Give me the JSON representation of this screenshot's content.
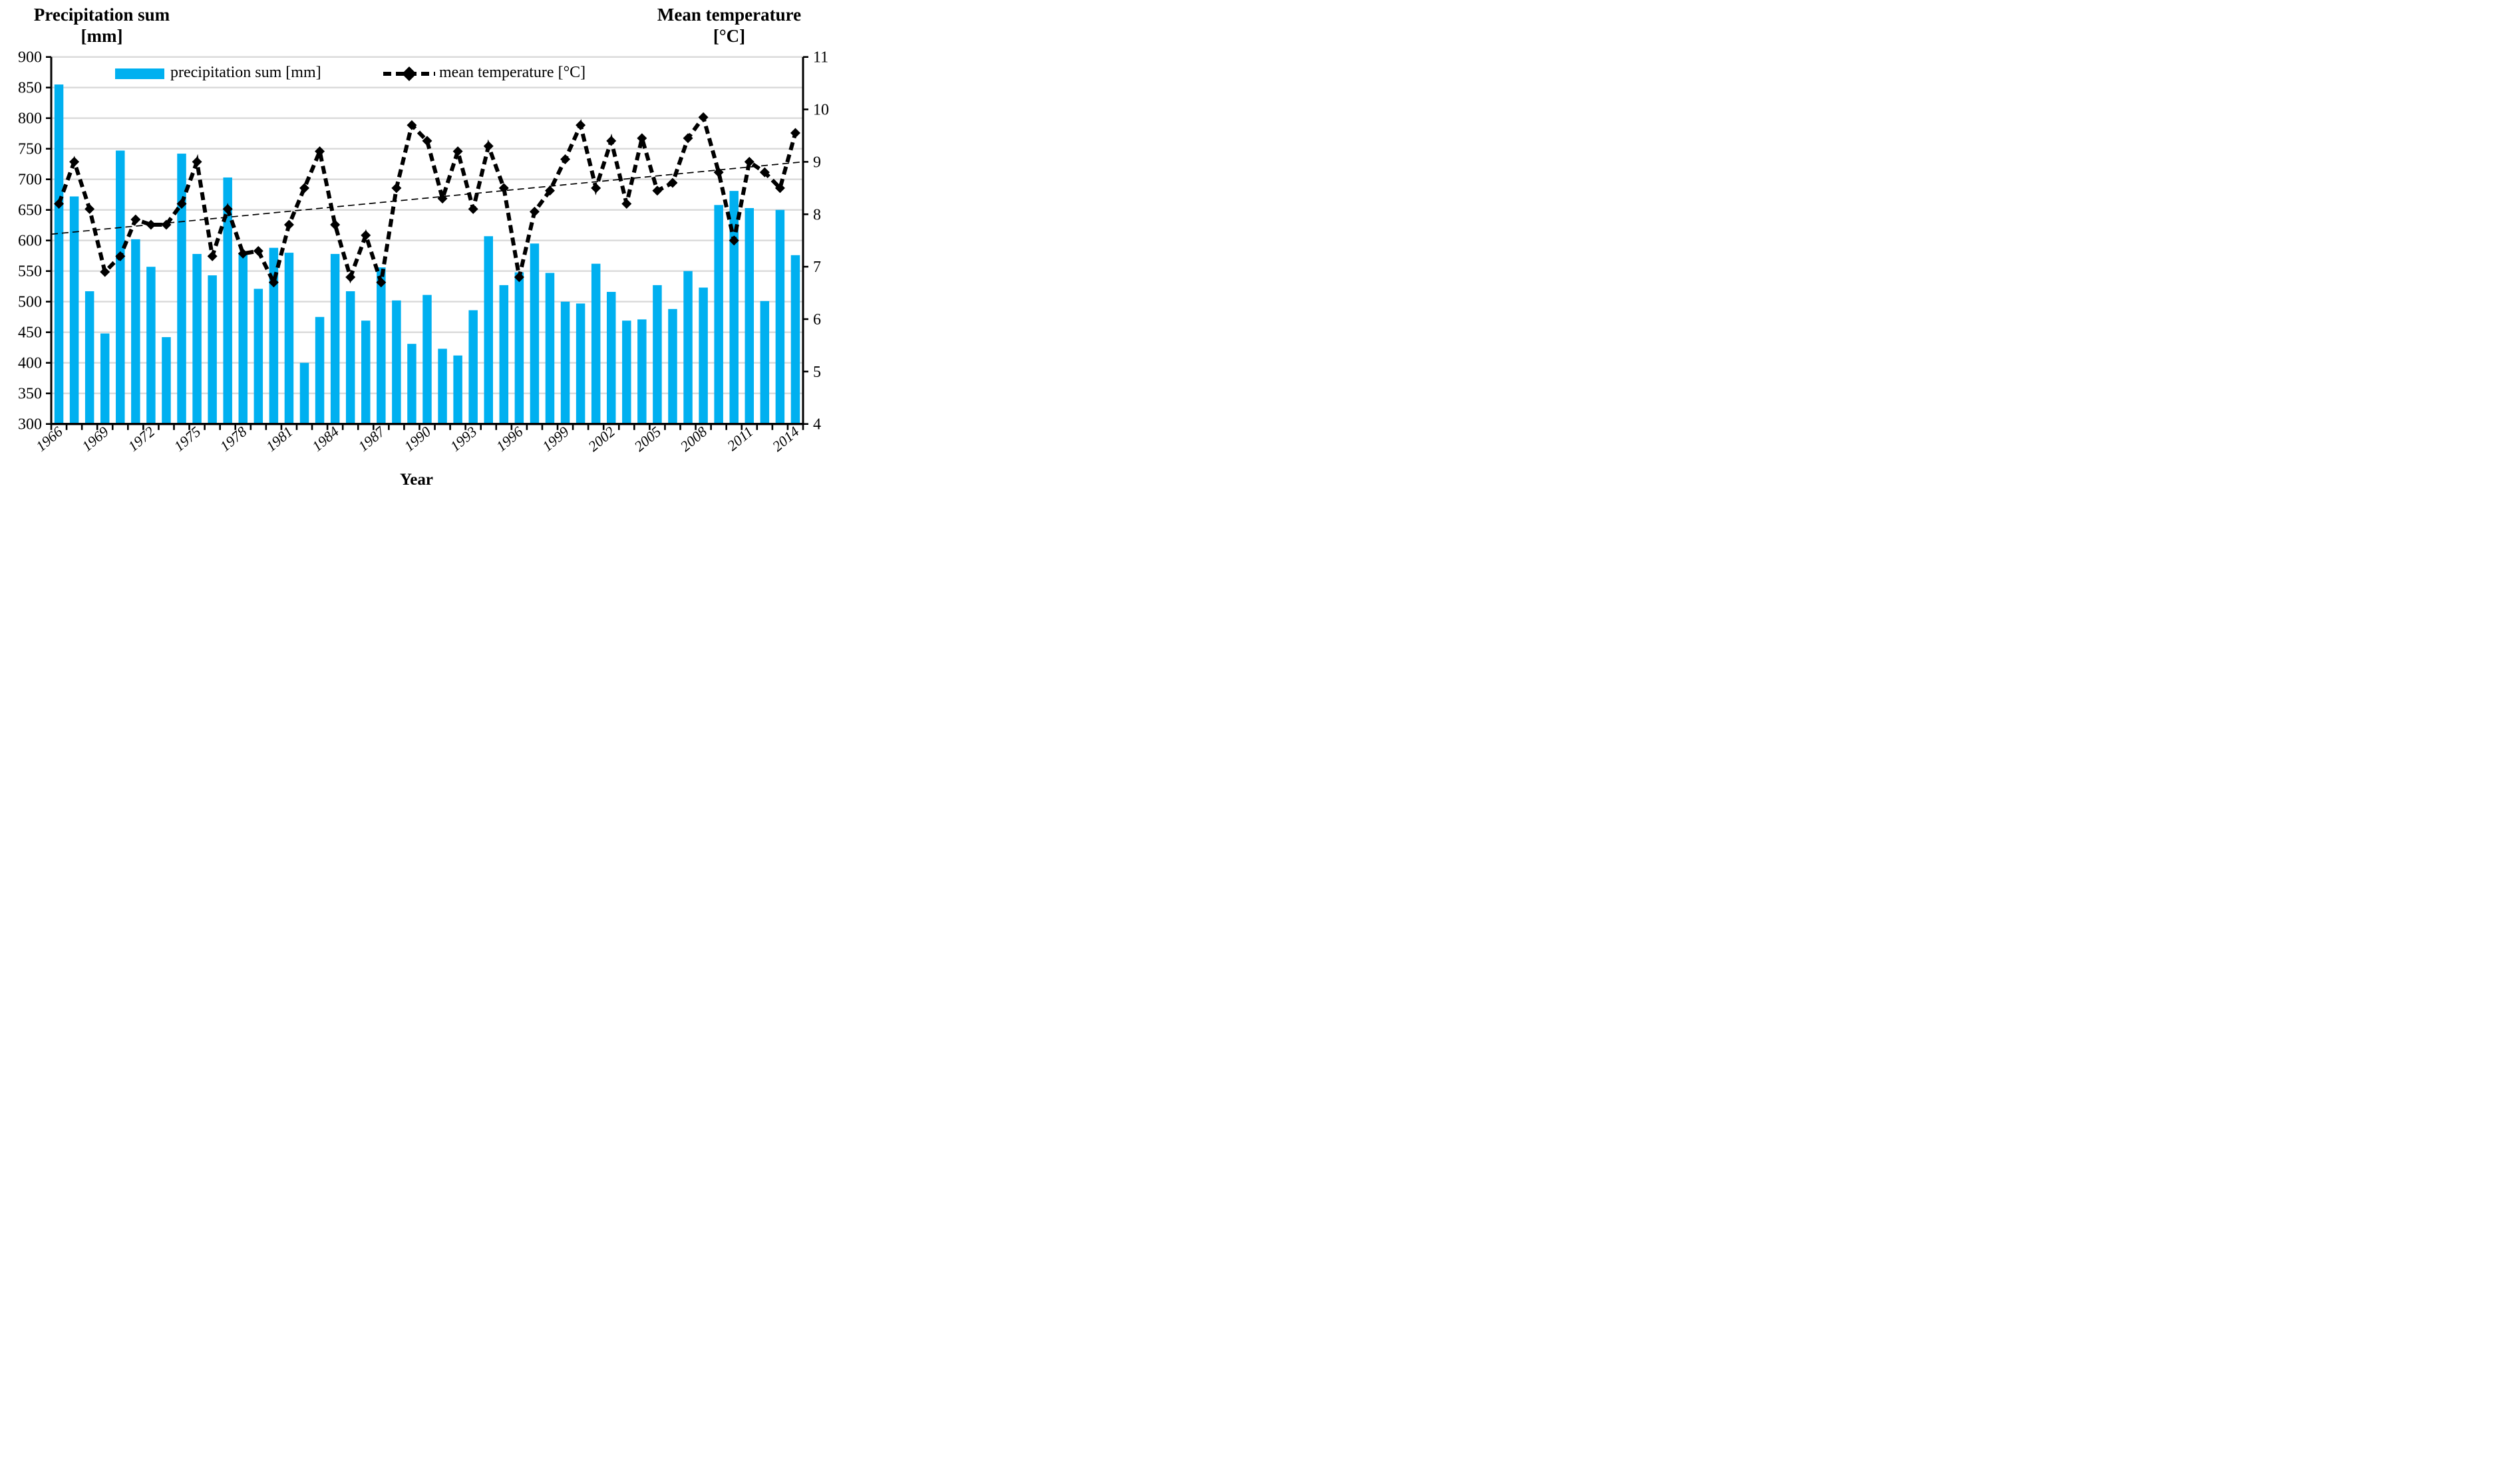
{
  "chart_data": {
    "type": "bar",
    "combo": "bar + dashed line with diamond markers + thin linear trendline, dual y-axes",
    "title": "",
    "x": [
      1966,
      1967,
      1968,
      1969,
      1970,
      1971,
      1972,
      1973,
      1974,
      1975,
      1976,
      1977,
      1978,
      1979,
      1980,
      1981,
      1982,
      1983,
      1984,
      1985,
      1986,
      1987,
      1988,
      1989,
      1990,
      1991,
      1992,
      1993,
      1994,
      1995,
      1996,
      1997,
      1998,
      1999,
      2000,
      2001,
      2002,
      2003,
      2004,
      2005,
      2006,
      2007,
      2008,
      2009,
      2010,
      2011,
      2012,
      2013,
      2014
    ],
    "series": [
      {
        "name": "precipitation sum [mm]",
        "type": "bar",
        "axis": "left",
        "color": "#00b0f0",
        "values": [
          855,
          672,
          517,
          448,
          747,
          602,
          557,
          442,
          742,
          578,
          543,
          703,
          580,
          521,
          588,
          580,
          400,
          475,
          578,
          517,
          469,
          556,
          502,
          431,
          511,
          423,
          412,
          486,
          607,
          527,
          548,
          595,
          547,
          500,
          497,
          562,
          516,
          469,
          471,
          527,
          488,
          550,
          523,
          658,
          681,
          653,
          501,
          650,
          576
        ]
      },
      {
        "name": "mean temperature [°C]",
        "type": "line",
        "axis": "right",
        "color": "#000000",
        "dashed": true,
        "marker": "diamond",
        "values": [
          8.2,
          9.0,
          8.1,
          6.9,
          7.2,
          7.9,
          7.8,
          7.8,
          8.2,
          9.0,
          7.2,
          8.1,
          7.25,
          7.3,
          6.7,
          7.8,
          8.5,
          9.2,
          7.8,
          6.8,
          7.6,
          6.7,
          8.5,
          9.7,
          9.4,
          8.3,
          9.2,
          8.1,
          9.3,
          8.5,
          6.8,
          8.05,
          8.45,
          9.05,
          9.7,
          8.5,
          9.4,
          8.2,
          9.45,
          8.45,
          8.6,
          9.45,
          9.85,
          8.8,
          7.5,
          9.0,
          8.8,
          8.5,
          9.55
        ]
      },
      {
        "name": "temperature linear trend",
        "type": "trendline",
        "axis": "right",
        "color": "#000000",
        "dashed": true,
        "start_value": 7.62,
        "end_value": 9.0
      }
    ],
    "left_axis": {
      "title1": "Precipitation sum",
      "title2": "[mm]",
      "min": 300,
      "max": 900,
      "step": 50,
      "ticks": [
        300,
        350,
        400,
        450,
        500,
        550,
        600,
        650,
        700,
        750,
        800,
        850,
        900
      ]
    },
    "right_axis": {
      "title1": "Mean temperature",
      "title2": "[°C]",
      "min": 4,
      "max": 11,
      "step": 1,
      "ticks": [
        4,
        5,
        6,
        7,
        8,
        9,
        10,
        11
      ]
    },
    "x_axis": {
      "title": "Year",
      "labeled_ticks": [
        1966,
        1969,
        1972,
        1975,
        1978,
        1981,
        1984,
        1987,
        1990,
        1993,
        1996,
        1999,
        2002,
        2005,
        2008,
        2011,
        2014
      ]
    },
    "grid": true,
    "gridline_color": "#d9d9d9",
    "legend_position": "top-inside",
    "legend": {
      "bar_label": "precipitation sum [mm]",
      "line_label": "mean temperature [°C]"
    }
  }
}
